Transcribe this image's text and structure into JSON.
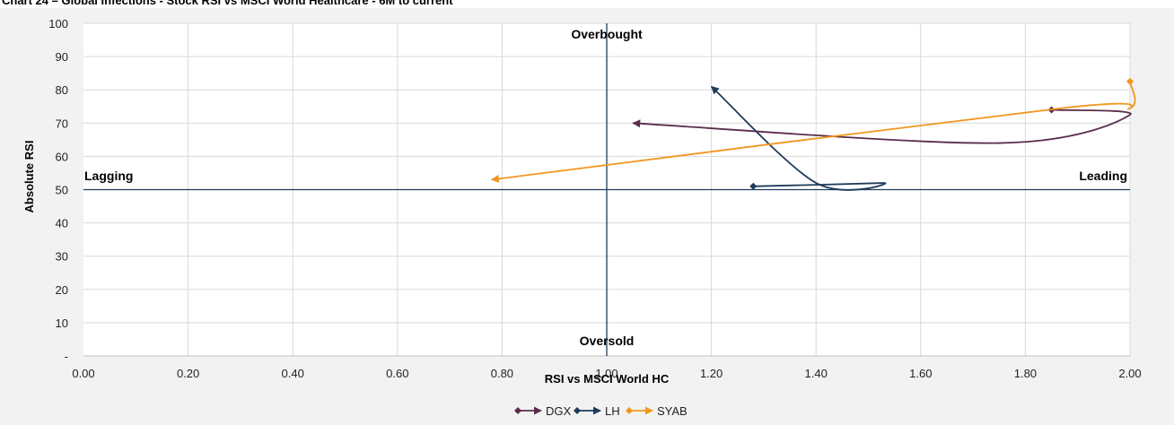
{
  "title": "Chart 24 – Global Infections - Stock RSI vs MSCI World Healthcare - 6M to current",
  "chart_data": {
    "type": "scatter",
    "xlabel": "RSI vs MSCI World HC",
    "ylabel": "Absolute RSI",
    "xlim": [
      0,
      2
    ],
    "ylim": [
      0,
      100
    ],
    "x_ticks": [
      "0.00",
      "0.20",
      "0.40",
      "0.60",
      "0.80",
      "1.00",
      "1.20",
      "1.40",
      "1.60",
      "1.80",
      "2.00"
    ],
    "y_ticks": [
      "-",
      "10",
      "20",
      "30",
      "40",
      "50",
      "60",
      "70",
      "80",
      "90",
      "100"
    ],
    "x_tick_values": [
      0,
      0.2,
      0.4,
      0.6,
      0.8,
      1.0,
      1.2,
      1.4,
      1.6,
      1.8,
      2.0
    ],
    "y_tick_values": [
      0,
      10,
      20,
      30,
      40,
      50,
      60,
      70,
      80,
      90,
      100
    ],
    "grid": true,
    "reference_lines": {
      "x": 1.0,
      "y": 50
    },
    "quadrant_labels": {
      "top": "Overbought",
      "bottom": "Oversold",
      "left": "Lagging",
      "right": "Leading"
    },
    "legend_position": "bottom",
    "series": [
      {
        "name": "DGX",
        "color": "#5a2d4a",
        "x": [
          1.85,
          2.0,
          1.75,
          1.05
        ],
        "y": [
          74,
          72.5,
          64,
          70
        ]
      },
      {
        "name": "LH",
        "color": "#1f3b5a",
        "x": [
          1.28,
          1.53,
          1.4,
          1.2
        ],
        "y": [
          51,
          52,
          52,
          81
        ]
      },
      {
        "name": "SYAB",
        "color": "#f0961e",
        "x": [
          2.0,
          2.0,
          1.87,
          0.78
        ],
        "y": [
          82.5,
          74.5,
          74.5,
          53
        ]
      }
    ]
  }
}
